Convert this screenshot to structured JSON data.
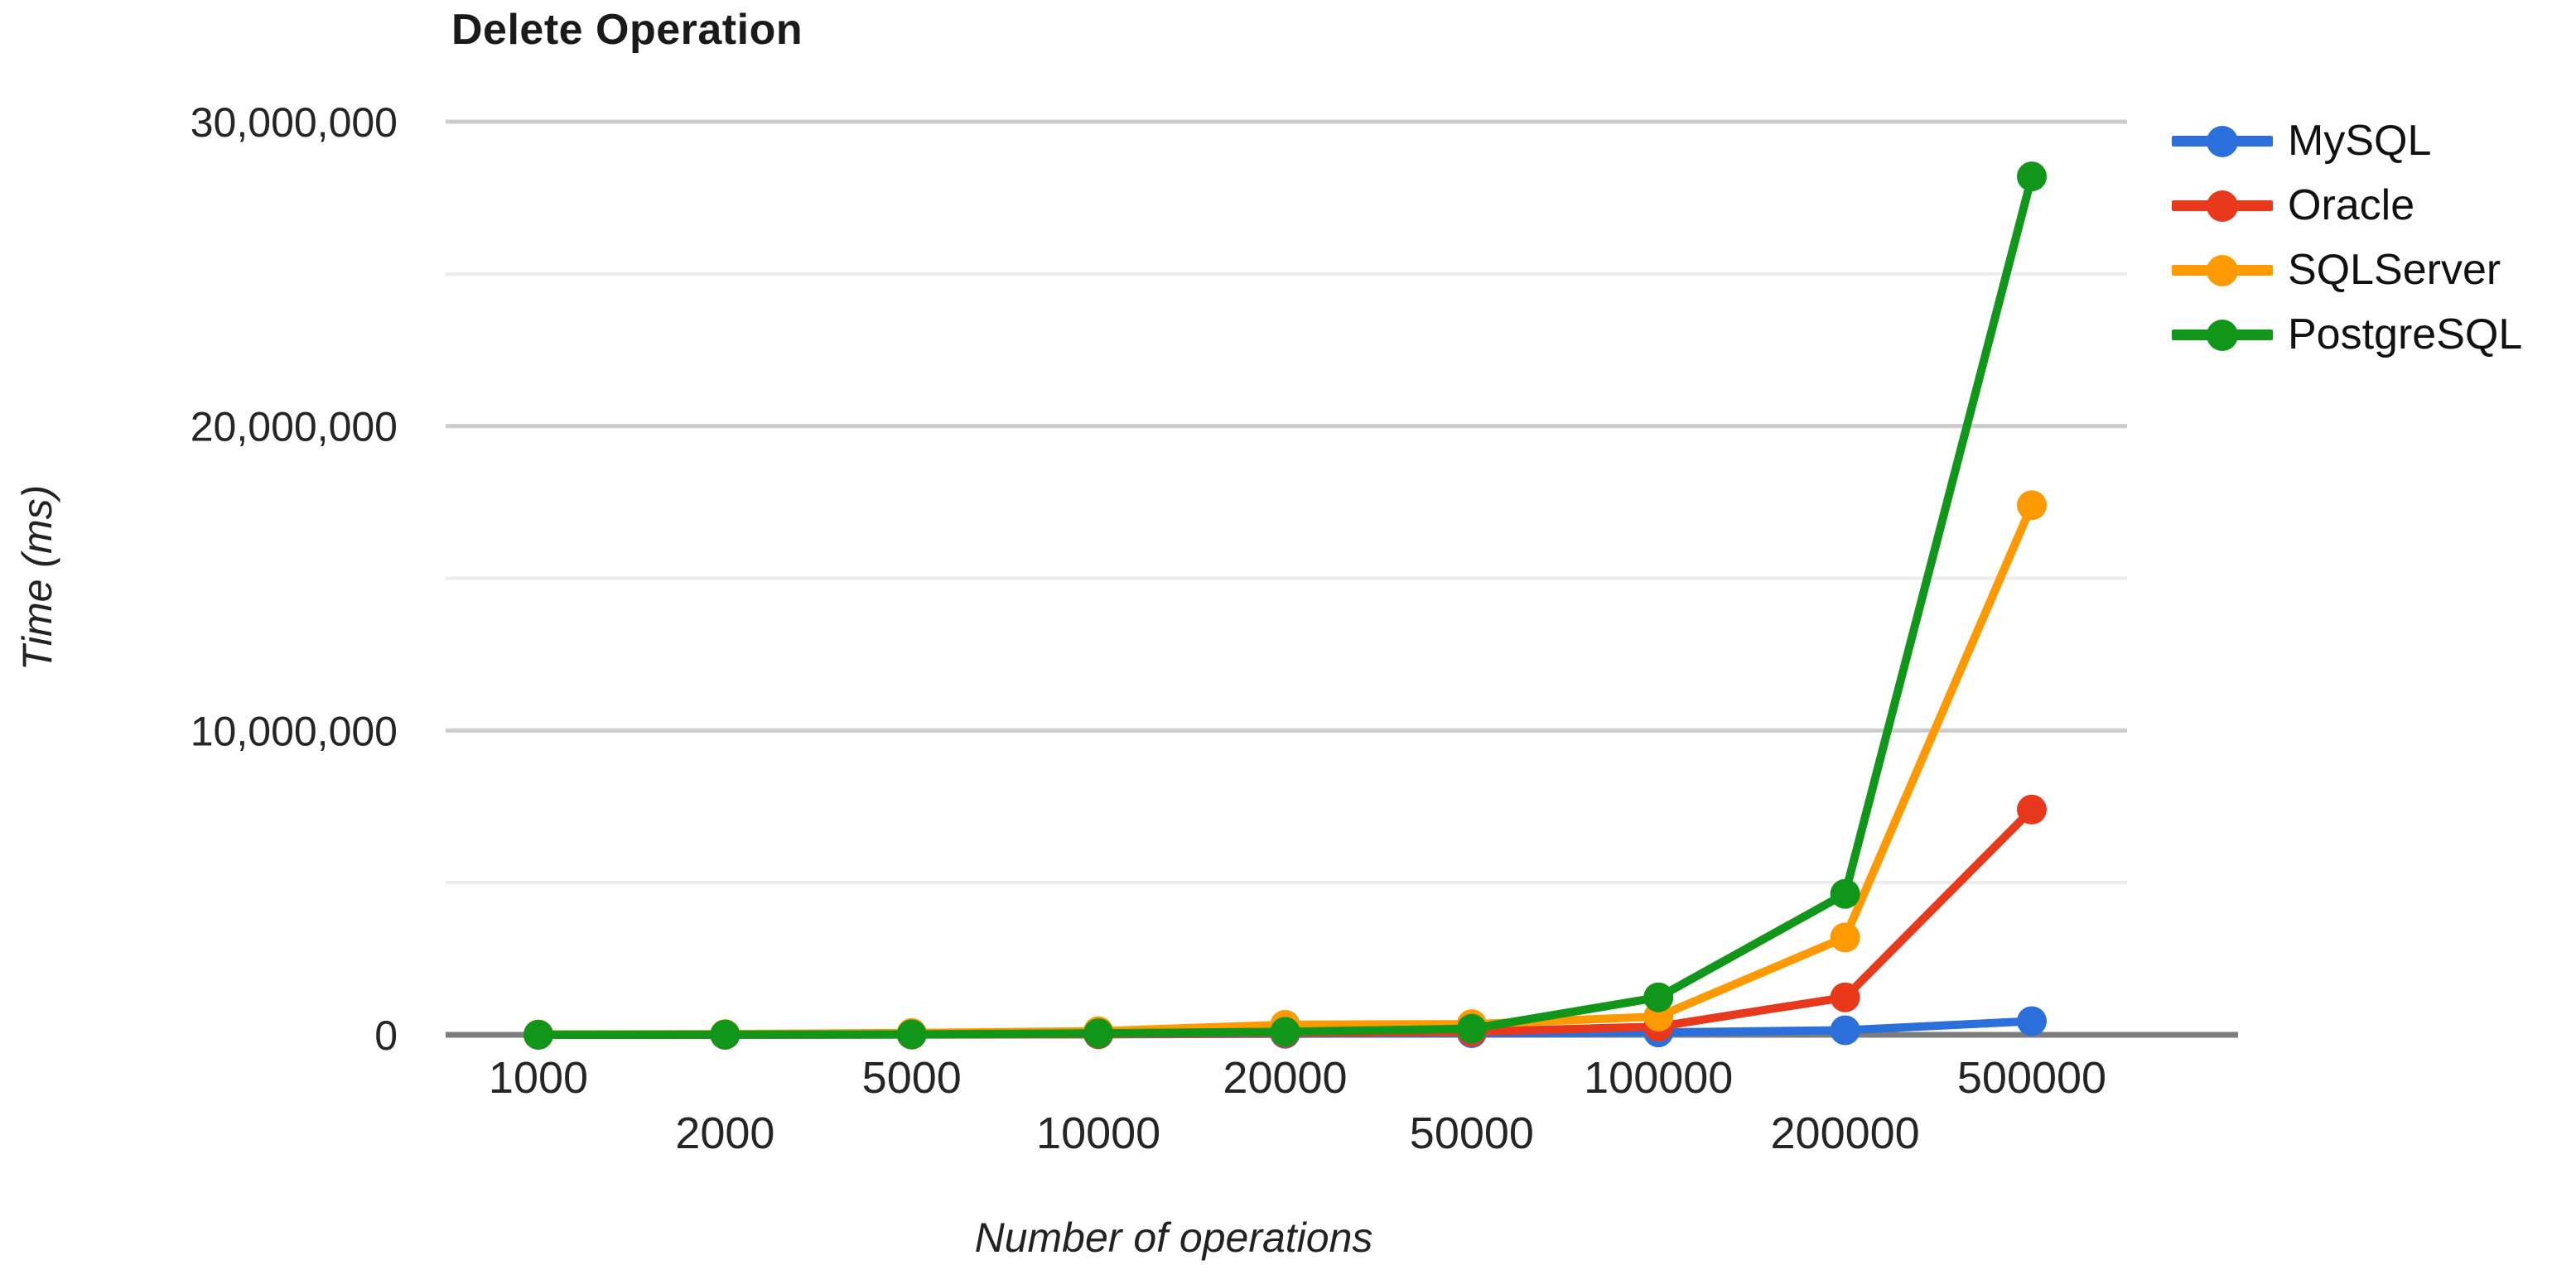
{
  "chart_data": {
    "type": "line",
    "title": "Delete Operation",
    "xlabel": "Number of operations",
    "ylabel": "Time (ms)",
    "categories": [
      "1000",
      "2000",
      "5000",
      "10000",
      "20000",
      "50000",
      "100000",
      "200000",
      "500000"
    ],
    "series": [
      {
        "name": "MySQL",
        "color": "#2B6FDB",
        "values": [
          2000,
          4000,
          9000,
          18000,
          35000,
          55000,
          80000,
          150000,
          450000
        ]
      },
      {
        "name": "Oracle",
        "color": "#E8391D",
        "values": [
          2500,
          5000,
          12000,
          25000,
          60000,
          100000,
          270000,
          1230000,
          7400000
        ]
      },
      {
        "name": "SQLServer",
        "color": "#FF9900",
        "values": [
          12000,
          25000,
          60000,
          120000,
          330000,
          350000,
          600000,
          3200000,
          17400000
        ]
      },
      {
        "name": "PostgreSQL",
        "color": "#109618",
        "values": [
          3000,
          6000,
          15000,
          50000,
          100000,
          200000,
          1230000,
          4630000,
          28200000
        ]
      }
    ],
    "y_axis": {
      "min": 0,
      "max": 30000000,
      "tick_values": [
        0,
        10000000,
        20000000,
        30000000
      ],
      "tick_labels": [
        "0",
        "10,000,000",
        "20,000,000",
        "30,000,000"
      ],
      "minor_tick_values": [
        5000000,
        15000000,
        25000000
      ]
    },
    "x_axis": {
      "label_rows": "staggered"
    },
    "legend_position": "right",
    "grid": true
  },
  "colors": {
    "grid_major": "#cccccc",
    "grid_minor": "#ececec",
    "baseline": "#7d7d7d",
    "tick_label": "#252525",
    "axis_title": "#222222",
    "title": "#1a1a1a"
  }
}
